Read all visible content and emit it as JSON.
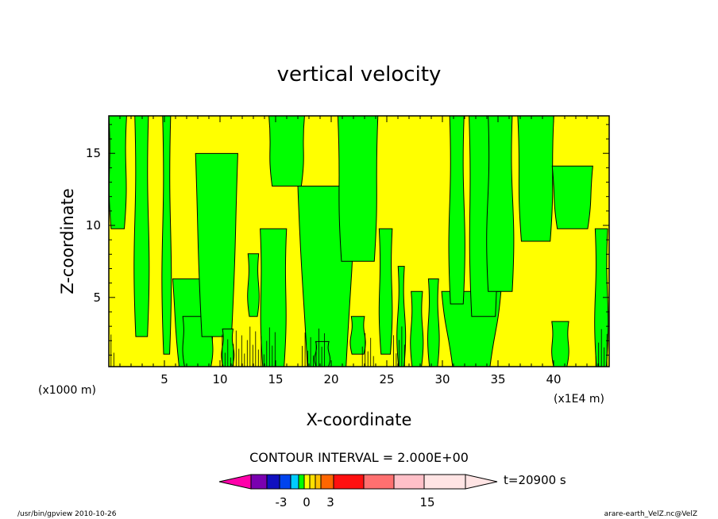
{
  "chart_data": {
    "type": "heatmap",
    "title": "vertical velocity",
    "xlabel": "X-coordinate",
    "ylabel": "Z-coordinate",
    "xlim": [
      0,
      45
    ],
    "ylim": [
      0.2,
      17.6
    ],
    "x_ticks": [
      5,
      10,
      15,
      20,
      25,
      30,
      35,
      40
    ],
    "y_ticks": [
      5,
      10,
      15
    ],
    "y_unit_label": "(x1000 m)",
    "x_unit_label": "(x1E4 m)",
    "contour_interval_text": "CONTOUR INTERVAL = 2.000E+00",
    "time_label": "t=20900 s",
    "colorbar": {
      "colors": [
        "#ff00aa",
        "#7a00b0",
        "#1010c0",
        "#0044ee",
        "#00ccff",
        "#00ff00",
        "#ffff00",
        "#ffe000",
        "#ffc000",
        "#ff6600",
        "#ff1010",
        "#ff7070",
        "#ffc0c8",
        "#ffe4e4"
      ],
      "tick_labels": [
        "-3",
        "0",
        "3",
        "15"
      ]
    },
    "footer_left": "/usr/bin/gpview   2010-10-26",
    "footer_right": "arare-earth_VelZ.nc@VelZ",
    "field_colors": {
      "positive": "#ffff00",
      "negative": "#00ff00"
    }
  }
}
